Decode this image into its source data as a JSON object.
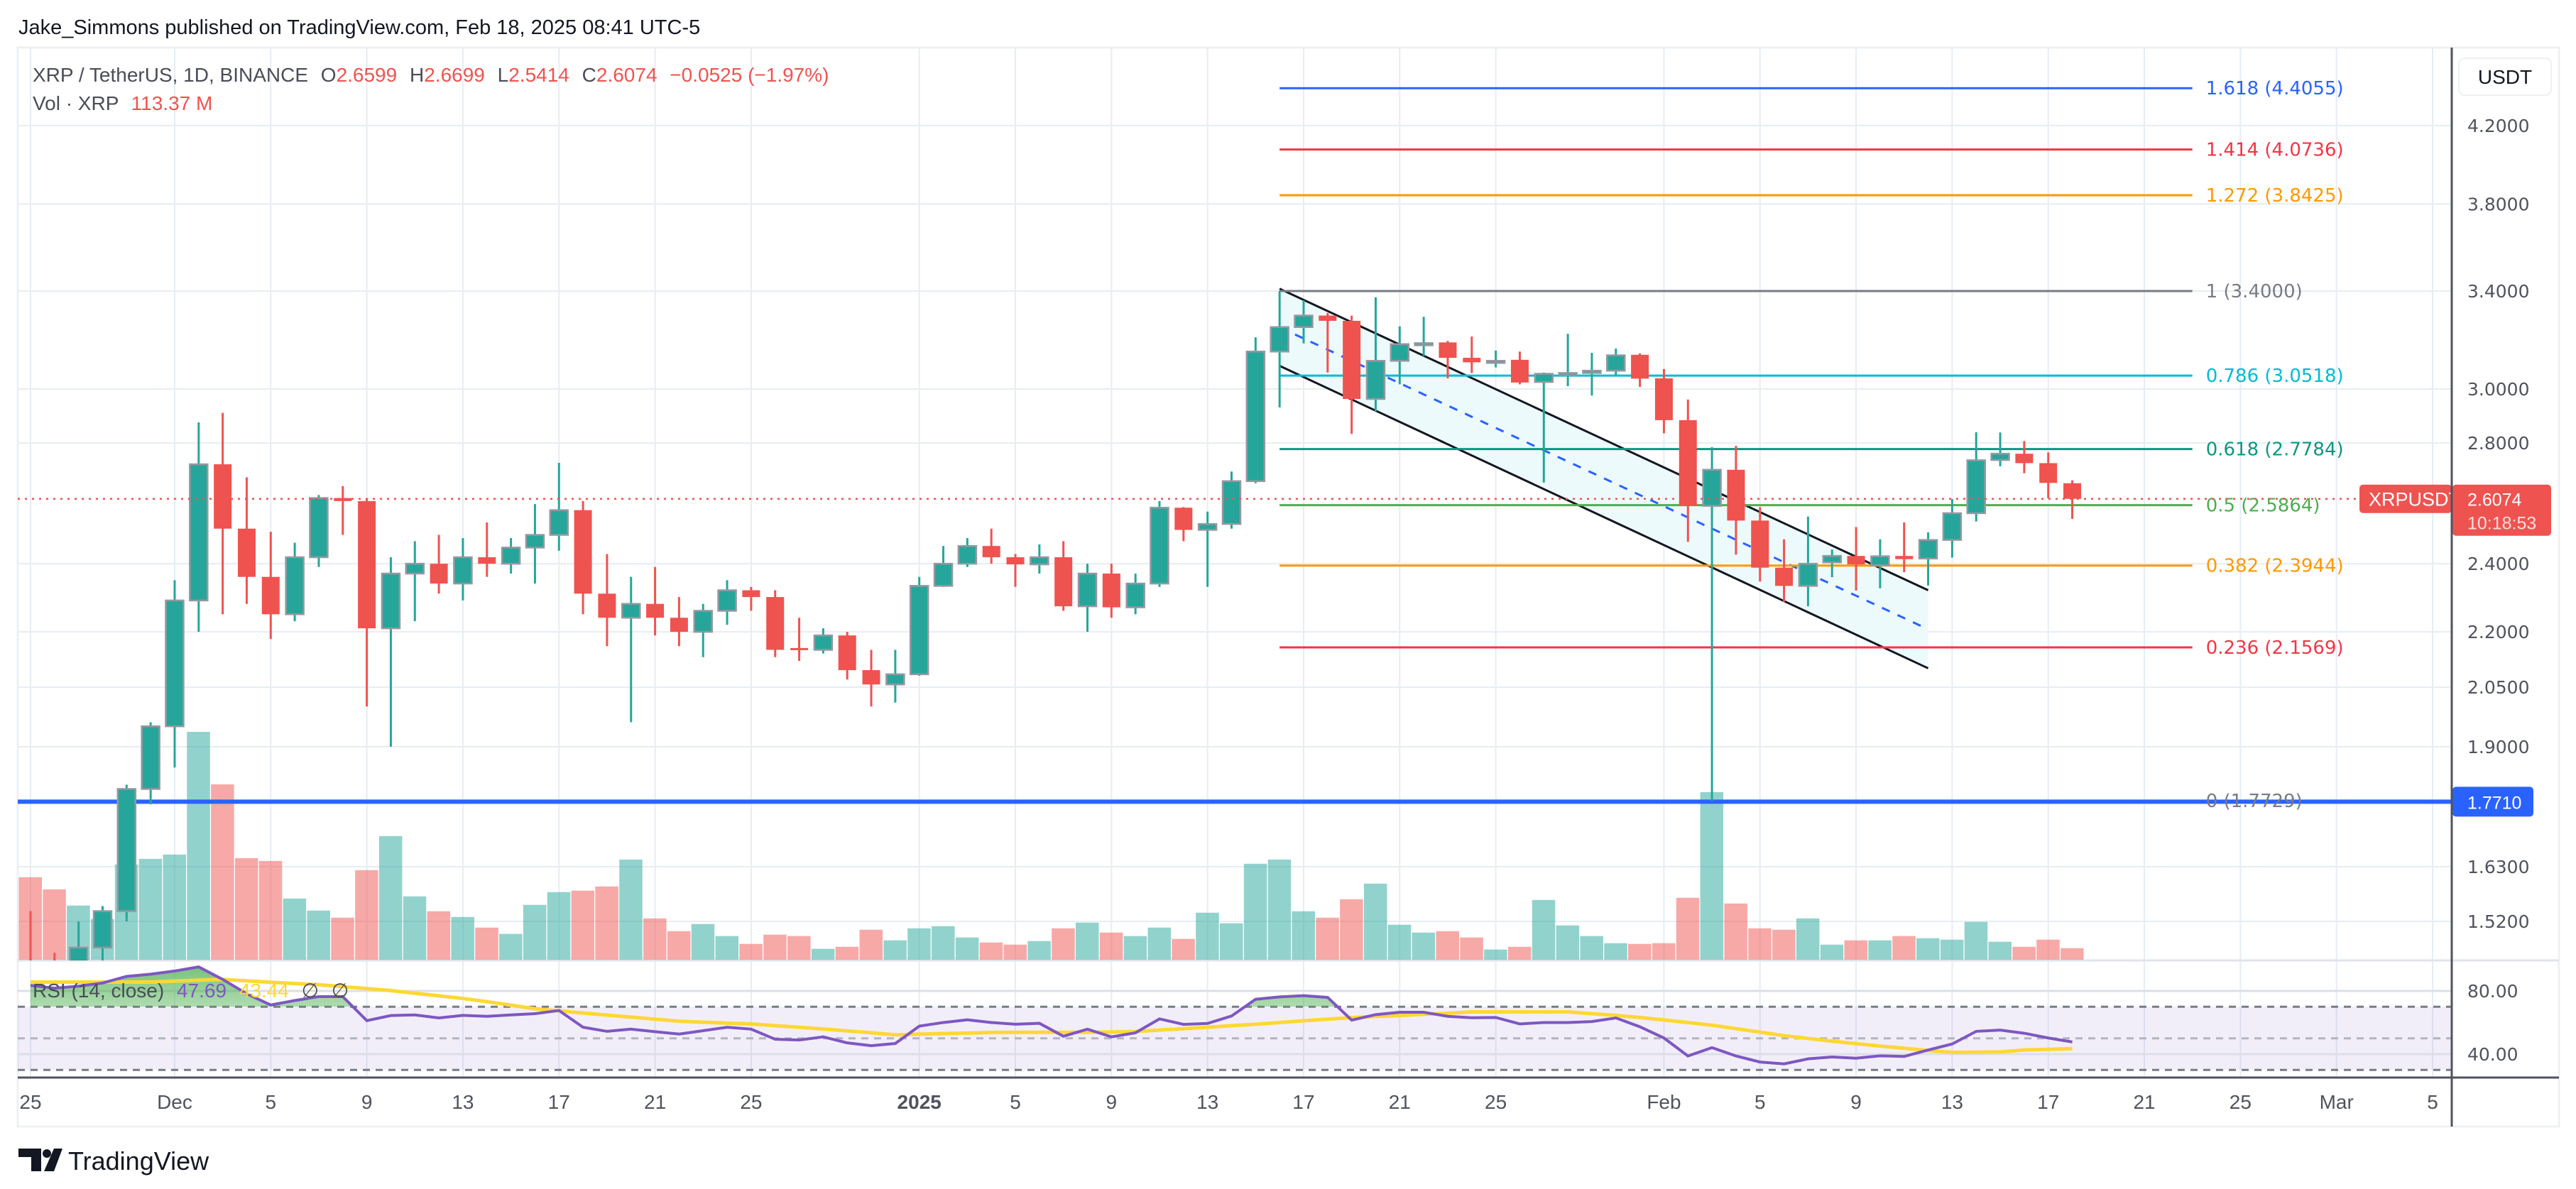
{
  "header": {
    "publisher_line": "Jake_Simmons published on TradingView.com, Feb 18, 2025 08:41 UTC-5"
  },
  "legend": {
    "symbol": "XRP / TetherUS, 1D, BINANCE",
    "o_label": "O",
    "o": "2.6599",
    "h_label": "H",
    "h": "2.6699",
    "l_label": "L",
    "l": "2.5414",
    "c_label": "C",
    "c": "2.6074",
    "change": "−0.0525 (−1.97%)",
    "vol_label": "Vol · XRP",
    "vol": "113.37 M"
  },
  "price_axis": {
    "currency": "USDT",
    "ticks": [
      "4.2000",
      "3.8000",
      "3.4000",
      "3.0000",
      "2.8000",
      "2.4000",
      "2.2000",
      "2.0500",
      "1.9000",
      "1.6300",
      "1.5200"
    ],
    "last_price_tag": {
      "symbol": "XRPUSDT",
      "price": "2.6074",
      "countdown": "10:18:53"
    },
    "hline_tag": "1.7710"
  },
  "rsi": {
    "legend_name": "RSI (14, close)",
    "value": "47.69",
    "ma_value": "43.44",
    "extra1": "∅",
    "extra2": "∅",
    "axis_ticks": [
      "80.00",
      "40.00"
    ],
    "levels": [
      70,
      50,
      30
    ]
  },
  "time_axis": {
    "labels": [
      {
        "text": "25",
        "date": "2024-11-25"
      },
      {
        "text": "Dec",
        "date": "2024-12-01"
      },
      {
        "text": "5",
        "date": "2024-12-05"
      },
      {
        "text": "9",
        "date": "2024-12-09"
      },
      {
        "text": "13",
        "date": "2024-12-13"
      },
      {
        "text": "17",
        "date": "2024-12-17"
      },
      {
        "text": "21",
        "date": "2024-12-21"
      },
      {
        "text": "25",
        "date": "2024-12-25"
      },
      {
        "text": "2025",
        "date": "2025-01-01",
        "bold": true
      },
      {
        "text": "5",
        "date": "2025-01-05"
      },
      {
        "text": "9",
        "date": "2025-01-09"
      },
      {
        "text": "13",
        "date": "2025-01-13"
      },
      {
        "text": "17",
        "date": "2025-01-17"
      },
      {
        "text": "21",
        "date": "2025-01-21"
      },
      {
        "text": "25",
        "date": "2025-01-25"
      },
      {
        "text": "Feb",
        "date": "2025-02-01"
      },
      {
        "text": "5",
        "date": "2025-02-05"
      },
      {
        "text": "9",
        "date": "2025-02-09"
      },
      {
        "text": "13",
        "date": "2025-02-13"
      },
      {
        "text": "17",
        "date": "2025-02-17"
      },
      {
        "text": "21",
        "date": "2025-02-21"
      },
      {
        "text": "25",
        "date": "2025-02-25"
      },
      {
        "text": "Mar",
        "date": "2025-03-01"
      },
      {
        "text": "5",
        "date": "2025-03-05"
      }
    ]
  },
  "fib": {
    "start": "2025-01-16",
    "end": "2025-02-23",
    "levels": [
      {
        "label": "1.618 (4.4055)",
        "price": 4.4055,
        "color": "#2962ff"
      },
      {
        "label": "1.414 (4.0736)",
        "price": 4.0736,
        "color": "#f23645"
      },
      {
        "label": "1.272 (3.8425)",
        "price": 3.8425,
        "color": "#ff9800"
      },
      {
        "label": "1 (3.4000)",
        "price": 3.4,
        "color": "#787b86"
      },
      {
        "label": "0.786 (3.0518)",
        "price": 3.0518,
        "color": "#00bcd4"
      },
      {
        "label": "0.618 (2.7784)",
        "price": 2.7784,
        "color": "#089981"
      },
      {
        "label": "0.5 (2.5864)",
        "price": 2.5864,
        "color": "#4caf50"
      },
      {
        "label": "0.382 (2.3944)",
        "price": 2.3944,
        "color": "#ff9800"
      },
      {
        "label": "0.236 (2.1569)",
        "price": 2.1569,
        "color": "#f23645"
      },
      {
        "label": "0 (1.7729)",
        "price": 1.7729,
        "color": "#787b86"
      }
    ]
  },
  "channel": {
    "start": "2025-01-16",
    "end": "2025-02-12",
    "upper": [
      3.41,
      2.32
    ],
    "lower": [
      3.09,
      2.1
    ]
  },
  "hline": {
    "price": 1.771,
    "color": "#2962ff"
  },
  "last_price": 2.6074,
  "colors": {
    "up": "#26a69a",
    "down": "#ef5350",
    "vol_up": "rgba(38,166,154,0.5)",
    "vol_down": "rgba(239,83,80,0.5)",
    "rsi": "#7e57c2",
    "rsi_ma": "#fdd835",
    "channel_fill": "#edfafb",
    "channel_mid": "#2962ff"
  },
  "branding": {
    "logo_text": "TradingView"
  },
  "chart_data": [
    {
      "type": "candlestick",
      "title": "XRP / TetherUS, 1D, BINANCE",
      "y_scale": "log",
      "ylim": [
        1.446,
        4.64
      ],
      "x": [
        "2024-11-25",
        "2024-11-26",
        "2024-11-27",
        "2024-11-28",
        "2024-11-29",
        "2024-11-30",
        "2024-12-01",
        "2024-12-02",
        "2024-12-03",
        "2024-12-04",
        "2024-12-05",
        "2024-12-06",
        "2024-12-07",
        "2024-12-08",
        "2024-12-09",
        "2024-12-10",
        "2024-12-11",
        "2024-12-12",
        "2024-12-13",
        "2024-12-14",
        "2024-12-15",
        "2024-12-16",
        "2024-12-17",
        "2024-12-18",
        "2024-12-19",
        "2024-12-20",
        "2024-12-21",
        "2024-12-22",
        "2024-12-23",
        "2024-12-24",
        "2024-12-25",
        "2024-12-26",
        "2024-12-27",
        "2024-12-28",
        "2024-12-29",
        "2024-12-30",
        "2024-12-31",
        "2025-01-01",
        "2025-01-02",
        "2025-01-03",
        "2025-01-04",
        "2025-01-05",
        "2025-01-06",
        "2025-01-07",
        "2025-01-08",
        "2025-01-09",
        "2025-01-10",
        "2025-01-11",
        "2025-01-12",
        "2025-01-13",
        "2025-01-14",
        "2025-01-15",
        "2025-01-16",
        "2025-01-17",
        "2025-01-18",
        "2025-01-19",
        "2025-01-20",
        "2025-01-21",
        "2025-01-22",
        "2025-01-23",
        "2025-01-24",
        "2025-01-25",
        "2025-01-26",
        "2025-01-27",
        "2025-01-28",
        "2025-01-29",
        "2025-01-30",
        "2025-01-31",
        "2025-02-01",
        "2025-02-02",
        "2025-02-03",
        "2025-02-04",
        "2025-02-05",
        "2025-02-06",
        "2025-02-07",
        "2025-02-08",
        "2025-02-09",
        "2025-02-10",
        "2025-02-11",
        "2025-02-12",
        "2025-02-13",
        "2025-02-14",
        "2025-02-15",
        "2025-02-16",
        "2025-02-17",
        "2025-02-18"
      ],
      "ohlc": [
        [
          1.44,
          1.54,
          1.33,
          1.4
        ],
        [
          1.4,
          1.46,
          1.33,
          1.39
        ],
        [
          1.39,
          1.52,
          1.38,
          1.47
        ],
        [
          1.47,
          1.55,
          1.445,
          1.54
        ],
        [
          1.54,
          1.81,
          1.52,
          1.8
        ],
        [
          1.8,
          1.96,
          1.765,
          1.95
        ],
        [
          1.95,
          2.35,
          1.85,
          2.29
        ],
        [
          2.29,
          2.875,
          2.2,
          2.725
        ],
        [
          2.725,
          2.91,
          2.25,
          2.51
        ],
        [
          2.51,
          2.68,
          2.28,
          2.36
        ],
        [
          2.36,
          2.5,
          2.18,
          2.25
        ],
        [
          2.25,
          2.465,
          2.23,
          2.42
        ],
        [
          2.42,
          2.62,
          2.39,
          2.61
        ],
        [
          2.61,
          2.65,
          2.49,
          2.6
        ],
        [
          2.6,
          2.61,
          2.0,
          2.21
        ],
        [
          2.21,
          2.42,
          1.9,
          2.37
        ],
        [
          2.37,
          2.47,
          2.23,
          2.4
        ],
        [
          2.4,
          2.49,
          2.31,
          2.34
        ],
        [
          2.34,
          2.48,
          2.29,
          2.42
        ],
        [
          2.42,
          2.53,
          2.36,
          2.4
        ],
        [
          2.4,
          2.48,
          2.37,
          2.45
        ],
        [
          2.45,
          2.59,
          2.34,
          2.49
        ],
        [
          2.49,
          2.73,
          2.44,
          2.57
        ],
        [
          2.57,
          2.6,
          2.25,
          2.31
        ],
        [
          2.31,
          2.43,
          2.16,
          2.24
        ],
        [
          2.24,
          2.36,
          1.96,
          2.28
        ],
        [
          2.28,
          2.39,
          2.19,
          2.24
        ],
        [
          2.24,
          2.3,
          2.16,
          2.2
        ],
        [
          2.2,
          2.28,
          2.13,
          2.26
        ],
        [
          2.26,
          2.35,
          2.22,
          2.32
        ],
        [
          2.32,
          2.33,
          2.26,
          2.3
        ],
        [
          2.3,
          2.32,
          2.13,
          2.15
        ],
        [
          2.155,
          2.24,
          2.12,
          2.15
        ],
        [
          2.15,
          2.21,
          2.14,
          2.19
        ],
        [
          2.19,
          2.2,
          2.07,
          2.095
        ],
        [
          2.095,
          2.15,
          2.0,
          2.057
        ],
        [
          2.057,
          2.15,
          2.01,
          2.084
        ],
        [
          2.084,
          2.36,
          2.08,
          2.333
        ],
        [
          2.333,
          2.455,
          2.33,
          2.4
        ],
        [
          2.4,
          2.48,
          2.39,
          2.455
        ],
        [
          2.455,
          2.51,
          2.4,
          2.42
        ],
        [
          2.42,
          2.43,
          2.33,
          2.398
        ],
        [
          2.398,
          2.46,
          2.37,
          2.42
        ],
        [
          2.42,
          2.47,
          2.26,
          2.273
        ],
        [
          2.273,
          2.4,
          2.2,
          2.37
        ],
        [
          2.37,
          2.4,
          2.24,
          2.27
        ],
        [
          2.27,
          2.37,
          2.25,
          2.34
        ],
        [
          2.34,
          2.6,
          2.33,
          2.578
        ],
        [
          2.578,
          2.58,
          2.47,
          2.506
        ],
        [
          2.506,
          2.565,
          2.33,
          2.525
        ],
        [
          2.525,
          2.7,
          2.51,
          2.667
        ],
        [
          2.667,
          3.205,
          2.66,
          3.147
        ],
        [
          3.147,
          3.4,
          2.93,
          3.247
        ],
        [
          3.247,
          3.36,
          3.18,
          3.295
        ],
        [
          3.295,
          3.306,
          3.064,
          3.273
        ],
        [
          3.273,
          3.295,
          2.833,
          2.962
        ],
        [
          2.962,
          3.373,
          2.916,
          3.11
        ],
        [
          3.11,
          3.25,
          3.018,
          3.177
        ],
        [
          3.177,
          3.29,
          3.129,
          3.181
        ],
        [
          3.184,
          3.19,
          3.041,
          3.122
        ],
        [
          3.122,
          3.208,
          3.062,
          3.104
        ],
        [
          3.104,
          3.151,
          3.084,
          3.11
        ],
        [
          3.114,
          3.147,
          3.018,
          3.025
        ],
        [
          3.027,
          3.064,
          2.662,
          3.059
        ],
        [
          3.059,
          3.219,
          3.011,
          3.062
        ],
        [
          3.062,
          3.142,
          2.975,
          3.071
        ],
        [
          3.071,
          3.159,
          3.052,
          3.132
        ],
        [
          3.134,
          3.14,
          3.008,
          3.04
        ],
        [
          3.041,
          3.078,
          2.835,
          2.883
        ],
        [
          2.883,
          2.96,
          2.468,
          2.584
        ],
        [
          2.584,
          2.785,
          1.7729,
          2.706
        ],
        [
          2.706,
          2.79,
          2.428,
          2.536
        ],
        [
          2.536,
          2.58,
          2.346,
          2.388
        ],
        [
          2.388,
          2.476,
          2.286,
          2.333
        ],
        [
          2.333,
          2.549,
          2.273,
          2.4
        ],
        [
          2.404,
          2.444,
          2.359,
          2.424
        ],
        [
          2.424,
          2.515,
          2.319,
          2.398
        ],
        [
          2.395,
          2.476,
          2.326,
          2.423
        ],
        [
          2.424,
          2.53,
          2.374,
          2.414
        ],
        [
          2.416,
          2.498,
          2.334,
          2.474
        ],
        [
          2.474,
          2.607,
          2.419,
          2.56
        ],
        [
          2.56,
          2.839,
          2.533,
          2.739
        ],
        [
          2.74,
          2.838,
          2.718,
          2.762
        ],
        [
          2.762,
          2.807,
          2.694,
          2.729
        ],
        [
          2.729,
          2.767,
          2.609,
          2.661
        ],
        [
          2.6599,
          2.6699,
          2.5414,
          2.6074
        ]
      ]
    },
    {
      "type": "bar",
      "name": "Vol · XRP",
      "unit": "M",
      "values": [
        809,
        690,
        531,
        399,
        934,
        989,
        1031,
        2234,
        1719,
        996,
        968,
        600,
        482,
        412,
        878,
        1212,
        621,
        475,
        419,
        315,
        253,
        538,
        663,
        677,
        718,
        982,
        405,
        280,
        350,
        232,
        155,
        246,
        232,
        107,
        127,
        294,
        190,
        308,
        329,
        218,
        169,
        148,
        183,
        308,
        364,
        266,
        232,
        315,
        204,
        461,
        357,
        941,
        982,
        475,
        412,
        593,
        746,
        343,
        266,
        280,
        218,
        100,
        127,
        586,
        336,
        232,
        162,
        155,
        162,
        607,
        1643,
        551,
        308,
        294,
        405,
        148,
        190,
        190,
        232,
        211,
        197,
        371,
        176,
        127,
        197,
        113.37
      ]
    },
    {
      "type": "line",
      "ylim": [
        25.6,
        99.3
      ],
      "series": [
        {
          "name": "RSI (14, close)",
          "values": [
            83.5,
            81.7,
            83.0,
            85.0,
            89.2,
            90.6,
            92.6,
            95.2,
            87.3,
            78.2,
            71.1,
            73.9,
            76.4,
            76.4,
            61.2,
            64.4,
            64.8,
            62.9,
            64.5,
            63.9,
            64.8,
            65.6,
            67.6,
            57.0,
            54.4,
            55.8,
            54.2,
            52.7,
            54.8,
            57.0,
            55.8,
            49.4,
            48.9,
            50.9,
            47.1,
            45.3,
            46.7,
            57.7,
            60.0,
            61.7,
            60.0,
            58.9,
            59.5,
            51.3,
            55.8,
            50.9,
            53.5,
            62.3,
            58.8,
            59.4,
            64.1,
            74.7,
            76.2,
            77.0,
            75.9,
            61.5,
            65.0,
            66.5,
            66.5,
            63.9,
            63.0,
            63.2,
            59.1,
            60.0,
            60.0,
            60.6,
            62.9,
            57.3,
            50.2,
            38.8,
            44.1,
            38.8,
            35.0,
            33.8,
            37.0,
            38.2,
            37.4,
            38.9,
            38.5,
            42.6,
            46.4,
            54.4,
            55.2,
            53.2,
            50.2,
            47.69
          ]
        },
        {
          "values": [
            85.6,
            85.6,
            85.6,
            85.6,
            85.6,
            85.6,
            86.2,
            86.8,
            87.3,
            86.4,
            85.5,
            84.7,
            83.9,
            82.7,
            81.5,
            80.2,
            78.5,
            76.9,
            75.2,
            73.2,
            71.0,
            68.7,
            67.4,
            66.0,
            64.7,
            63.4,
            62.1,
            60.8,
            60.2,
            59.6,
            59.1,
            58.0,
            57.0,
            55.9,
            54.7,
            53.5,
            52.2,
            52.6,
            53.0,
            53.3,
            53.7,
            53.8,
            53.8,
            53.8,
            53.8,
            54.0,
            54.3,
            55.2,
            56.1,
            57.0,
            58.0,
            58.9,
            60.0,
            61.1,
            62.1,
            63.1,
            63.8,
            64.4,
            65.2,
            65.9,
            66.7,
            66.7,
            66.7,
            66.7,
            66.7,
            65.6,
            64.5,
            63.2,
            61.6,
            60.0,
            58.3,
            56.1,
            53.9,
            51.7,
            49.9,
            48.2,
            46.6,
            45.1,
            43.7,
            42.3,
            41.1,
            41.2,
            41.4,
            42.6,
            43.0,
            43.44
          ]
        }
      ]
    }
  ]
}
